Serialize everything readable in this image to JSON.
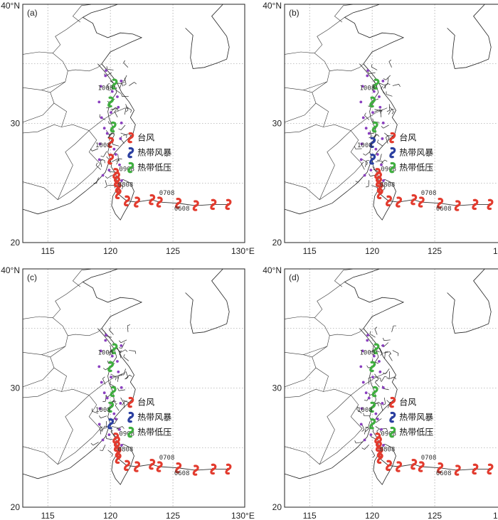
{
  "axes": {
    "y_ticks": [
      "40°N",
      "30",
      "20"
    ],
    "x_ticks": [
      "115",
      "120",
      "125",
      "130°E"
    ]
  },
  "panels": [
    {
      "label": "(a)"
    },
    {
      "label": "(b)"
    },
    {
      "label": "(c)"
    },
    {
      "label": "(d)"
    }
  ],
  "annotations": [
    "1008",
    "1008",
    "0908",
    "0808",
    "0708",
    "0608"
  ],
  "legend": [
    {
      "label": "台风",
      "color": "#e23b2e"
    },
    {
      "label": "热带风暴",
      "color": "#2b3fa0"
    },
    {
      "label": "热带低压",
      "color": "#3fae3f"
    }
  ],
  "colors": {
    "typhoon": "#e23b2e",
    "storm": "#2b3fa0",
    "depression": "#3fae3f",
    "obs": "#8a3fbf",
    "track": "#333333",
    "grid": "#888888"
  }
}
